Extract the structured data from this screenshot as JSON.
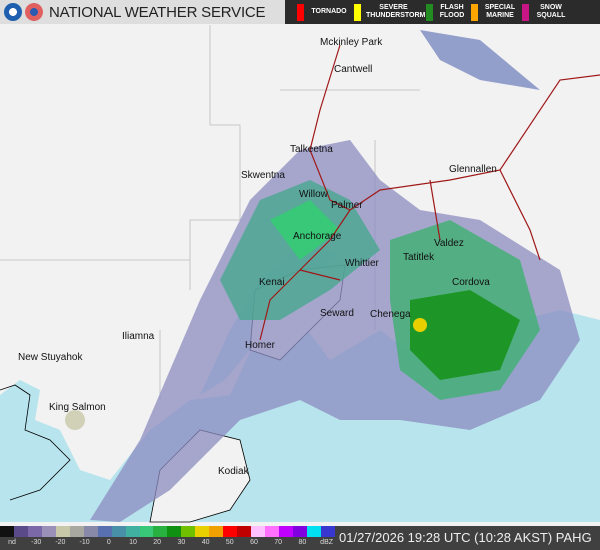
{
  "header": {
    "title": "NATIONAL WEATHER SERVICE",
    "logos": [
      "noaa-logo",
      "nws-logo"
    ]
  },
  "warnings": [
    {
      "label": "TORNADO",
      "color": "#ff0000"
    },
    {
      "label": "SEVERE THUNDERSTORM",
      "color": "#ffff00"
    },
    {
      "label": "FLASH FLOOD",
      "color": "#228b22"
    },
    {
      "label": "SPECIAL MARINE",
      "color": "#ffa500"
    },
    {
      "label": "SNOW SQUALL",
      "color": "#c71585"
    }
  ],
  "cities": [
    "Mckinley Park",
    "Cantwell",
    "Talkeetna",
    "Skwentna",
    "Glennallen",
    "Willow",
    "Palmer",
    "Anchorage",
    "Valdez",
    "Whittier",
    "Tatitlek",
    "Kenai",
    "Cordova",
    "Seward",
    "Chenega",
    "Iliamna",
    "New Stuyahok",
    "Homer",
    "King Salmon",
    "Kodiak"
  ],
  "legend": {
    "labels": [
      "nd",
      "-30",
      "-20",
      "-10",
      "0",
      "10",
      "20",
      "30",
      "40",
      "50",
      "60",
      "70",
      "80",
      "dBZ"
    ],
    "colors": [
      "#111111",
      "#5b4a8a",
      "#7a68a8",
      "#9a90b8",
      "#c8c8a8",
      "#a8a8a0",
      "#8888a8",
      "#5870b0",
      "#4890a8",
      "#40b0a0",
      "#38c878",
      "#28b040",
      "#109010",
      "#70c000",
      "#e8d000",
      "#f0a000",
      "#ff0000",
      "#c00000",
      "#ffc0ff",
      "#ff70ff",
      "#c000ff",
      "#8000e0",
      "#00e0f0",
      "#3838d0"
    ]
  },
  "timestamp": "01/27/2026 19:28 UTC (10:28 AKST) PAHG",
  "colors": {
    "land": "#f2f2f2",
    "water": "#b8e4ee",
    "roads": "#a01818"
  }
}
